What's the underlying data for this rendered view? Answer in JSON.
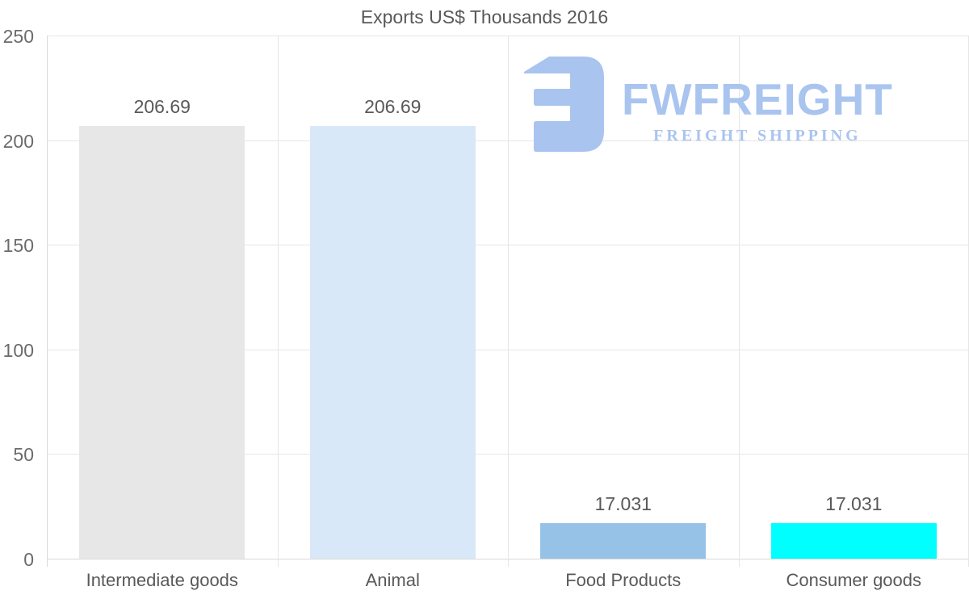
{
  "title": "Exports US$ Thousands 2016",
  "watermark": {
    "brand": "FWFREIGHT",
    "tagline": "FREIGHT SHIPPING"
  },
  "chart_data": {
    "type": "bar",
    "title": "Exports US$ Thousands 2016",
    "categories": [
      "Intermediate goods",
      "Animal",
      "Food Products",
      "Consumer goods"
    ],
    "values": [
      206.69,
      206.69,
      17.031,
      17.031
    ],
    "value_labels": [
      "206.69",
      "206.69",
      "17.031",
      "17.031"
    ],
    "bar_colors": [
      "#e7e7e7",
      "#d9e8f8",
      "#97c2e8",
      "#00ffff"
    ],
    "xlabel": "",
    "ylabel": "",
    "ylim": [
      0,
      250
    ],
    "yticks": [
      0,
      50,
      100,
      150,
      200,
      250
    ],
    "grid": true,
    "legend": false
  },
  "colors": {
    "background": "#ffffff",
    "title_text": "#595959",
    "tick_text": "#6b6b6b",
    "category_text": "#595959",
    "value_text": "#595959",
    "gridline": "#e6e6e6",
    "axis_line": "#d9d9d9",
    "logo_blue": "#a9c4ef"
  }
}
